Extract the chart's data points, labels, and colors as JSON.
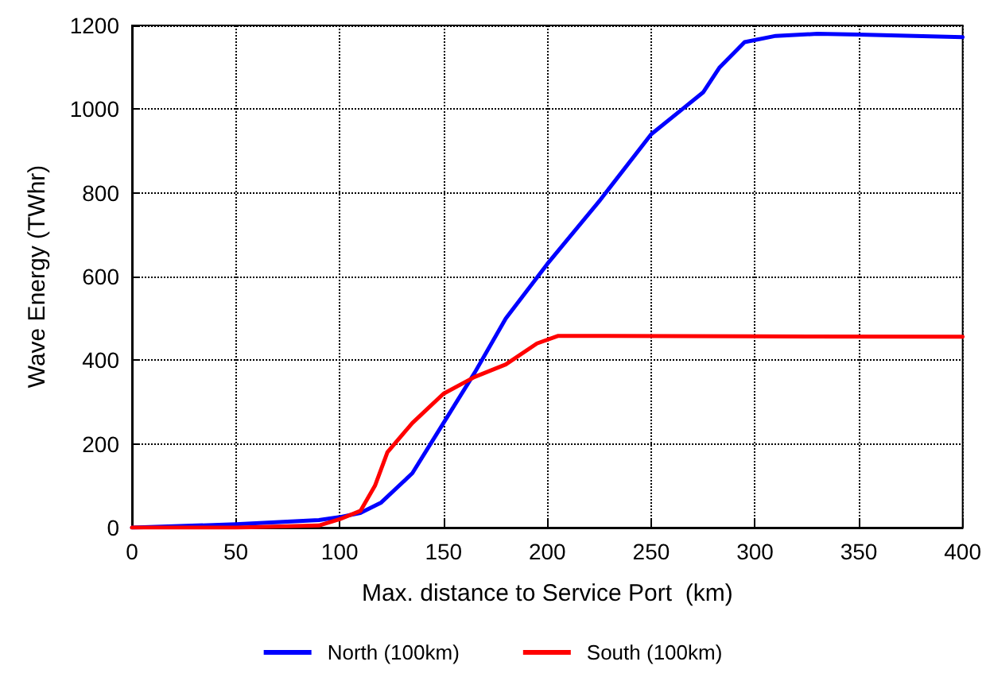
{
  "chart_data": {
    "type": "line",
    "xlabel": "Max. distance to Service Port  (km)",
    "ylabel": "Wave Energy (TWhr)",
    "xlim": [
      0,
      400
    ],
    "xticks": [
      0,
      50,
      100,
      150,
      200,
      250,
      300,
      350,
      400
    ],
    "ylim": [
      0,
      1200
    ],
    "yticks": [
      0,
      200,
      400,
      600,
      800,
      1000,
      1200
    ],
    "grid": true,
    "legend": "bottom",
    "marker": "none",
    "line_style": "solid",
    "series": [
      {
        "name": "North (100km)",
        "color": "#0000ff",
        "x": [
          0,
          50,
          90,
          100,
          110,
          120,
          135,
          150,
          165,
          180,
          200,
          225,
          250,
          265,
          275,
          283,
          295,
          310,
          330,
          350,
          400
        ],
        "values": [
          0,
          8,
          18,
          25,
          35,
          60,
          130,
          250,
          370,
          500,
          630,
          780,
          940,
          1000,
          1040,
          1100,
          1160,
          1175,
          1180,
          1178,
          1172
        ]
      },
      {
        "name": "South (100km)",
        "color": "#ff0000",
        "x": [
          0,
          50,
          90,
          100,
          110,
          117,
          123,
          135,
          150,
          165,
          180,
          195,
          205,
          220,
          300,
          400
        ],
        "values": [
          0,
          0,
          5,
          20,
          40,
          100,
          180,
          250,
          320,
          360,
          390,
          440,
          458,
          458,
          457,
          456
        ]
      }
    ]
  }
}
